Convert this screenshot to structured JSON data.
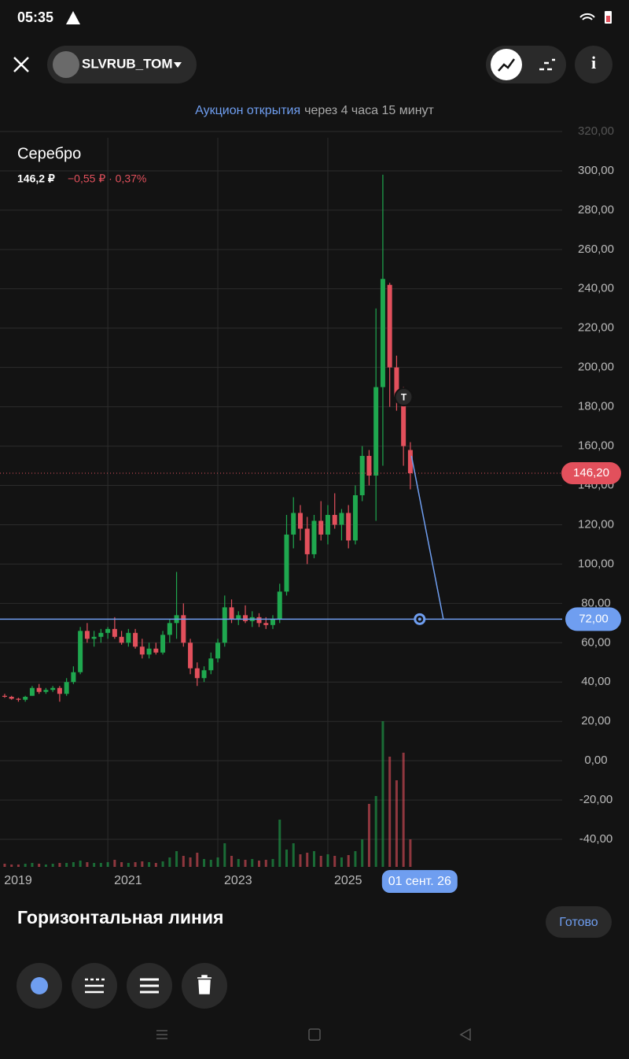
{
  "status_bar": {
    "time": "05:35"
  },
  "header": {
    "ticker": "SLVRUB_TOM"
  },
  "banner": {
    "link": "Аукцион открытия",
    "text": "через 4 часа 15 минут"
  },
  "instrument": {
    "name": "Серебро",
    "price": "146,2 ₽",
    "change": "−0,55 ₽ · 0,37%"
  },
  "chart_data": {
    "type": "candlestick",
    "x": [
      2019.125,
      2019.25,
      2019.375,
      2019.5,
      2019.625,
      2019.75,
      2019.875,
      2020,
      2020.125,
      2020.25,
      2020.375,
      2020.5,
      2020.625,
      2020.75,
      2020.875,
      2021,
      2021.125,
      2021.25,
      2021.375,
      2021.5,
      2021.625,
      2021.75,
      2021.875,
      2022,
      2022.125,
      2022.25,
      2022.375,
      2022.5,
      2022.625,
      2022.75,
      2022.875,
      2023,
      2023.125,
      2023.25,
      2023.375,
      2023.5,
      2023.625,
      2023.75,
      2023.875,
      2024,
      2024.125,
      2024.25,
      2024.375,
      2024.5,
      2024.625,
      2024.75,
      2024.875,
      2025,
      2025.125,
      2025.25,
      2025.375,
      2025.5,
      2025.625,
      2025.75,
      2025.875,
      2026,
      2026.125,
      2026.25,
      2026.375,
      2026.5
    ],
    "open": [
      33,
      32.5,
      31.5,
      31,
      33,
      37,
      35,
      36,
      37,
      34,
      40,
      45,
      66,
      62,
      63,
      65,
      67,
      63,
      60,
      65,
      58,
      54,
      57,
      55,
      64,
      70,
      74,
      60,
      47,
      42,
      46,
      52,
      60,
      78,
      72,
      74,
      71,
      73,
      70,
      69,
      72,
      86,
      115,
      126,
      118,
      105,
      122,
      115,
      125,
      120,
      126,
      112,
      135,
      155,
      145,
      190,
      242,
      200,
      185,
      158
    ],
    "high": [
      34,
      33,
      32,
      33,
      38,
      39,
      37,
      38,
      38,
      42,
      48,
      68,
      70,
      66,
      67,
      68,
      73,
      66,
      67,
      67,
      62,
      60,
      60,
      66,
      72,
      96,
      80,
      62,
      50,
      48,
      55,
      62,
      84,
      82,
      76,
      79,
      76,
      75,
      73,
      74,
      90,
      125,
      134,
      130,
      124,
      125,
      132,
      130,
      136,
      128,
      130,
      140,
      160,
      158,
      230,
      298,
      243,
      206,
      190,
      162
    ],
    "low": [
      32,
      31,
      30,
      30,
      33,
      34,
      34,
      35,
      30,
      33,
      39,
      44,
      60,
      58,
      60,
      62,
      62,
      59,
      58,
      57,
      52,
      52,
      54,
      54,
      60,
      62,
      58,
      44,
      38,
      40,
      44,
      50,
      58,
      70,
      69,
      70,
      68,
      68,
      67,
      67,
      70,
      84,
      108,
      112,
      100,
      103,
      112,
      110,
      118,
      112,
      108,
      110,
      132,
      140,
      122,
      150,
      180,
      178,
      150,
      138
    ],
    "close": [
      32.5,
      31.5,
      31,
      32.5,
      37,
      35,
      36,
      37,
      34,
      40,
      45,
      66,
      62,
      63,
      65,
      67,
      63,
      60,
      65,
      58,
      54,
      57,
      55,
      64,
      70,
      74,
      60,
      47,
      42,
      46,
      52,
      60,
      78,
      72,
      74,
      71,
      73,
      70,
      69,
      72,
      86,
      115,
      126,
      118,
      105,
      122,
      115,
      125,
      120,
      126,
      112,
      135,
      155,
      145,
      190,
      245,
      200,
      185,
      160,
      146.2
    ],
    "volume": [
      4,
      3,
      3,
      4,
      5,
      4,
      3,
      4,
      5,
      5,
      6,
      8,
      6,
      5,
      5,
      6,
      9,
      6,
      5,
      6,
      7,
      6,
      5,
      7,
      12,
      20,
      14,
      12,
      18,
      10,
      9,
      12,
      30,
      14,
      10,
      9,
      10,
      8,
      9,
      10,
      60,
      22,
      30,
      16,
      18,
      20,
      14,
      16,
      14,
      12,
      15,
      20,
      35,
      80,
      90,
      185,
      140,
      110,
      145,
      35
    ],
    "up_color": "#1fa84f",
    "down_color": "#e2505c",
    "xlim": [
      2019.04,
      2029.26
    ],
    "xticks": [
      2019,
      2021,
      2023,
      2025
    ],
    "ylim": [
      -54,
      322.4
    ],
    "yticks": [
      {
        "value": 320,
        "label": "320,00"
      },
      {
        "value": 300,
        "label": "300,00"
      },
      {
        "value": 280,
        "label": "280,00"
      },
      {
        "value": 260,
        "label": "260,00"
      },
      {
        "value": 240,
        "label": "240,00"
      },
      {
        "value": 220,
        "label": "220,00"
      },
      {
        "value": 200,
        "label": "200,00"
      },
      {
        "value": 180,
        "label": "180,00"
      },
      {
        "value": 160,
        "label": "160,00"
      },
      {
        "value": 140,
        "label": "140,00"
      },
      {
        "value": 120,
        "label": "120,00"
      },
      {
        "value": 100,
        "label": "100,00"
      },
      {
        "value": 80,
        "label": "80,00"
      },
      {
        "value": 60,
        "label": "60,00"
      },
      {
        "value": 40,
        "label": "40,00"
      },
      {
        "value": 20,
        "label": "20,00"
      },
      {
        "value": 0,
        "label": "0,00"
      },
      {
        "value": -20,
        "label": "-20,00"
      },
      {
        "value": -40,
        "label": "-40,00"
      }
    ],
    "grid": true,
    "last_price": {
      "value": 146.2,
      "label": "146,20"
    },
    "horizontal_line": {
      "value": 72,
      "label": "72,00",
      "color": "#6f9ef0"
    },
    "trend_line": {
      "x": [
        2026.52,
        2027.1
      ],
      "y": [
        155,
        72
      ]
    },
    "marker": {
      "x": 2026.38,
      "y": 185,
      "label": "T"
    },
    "cursor": {
      "x": 2026.67,
      "label": "01 сент. 26"
    }
  },
  "drawing_panel": {
    "title": "Горизонтальная линия",
    "done": "Готово"
  }
}
